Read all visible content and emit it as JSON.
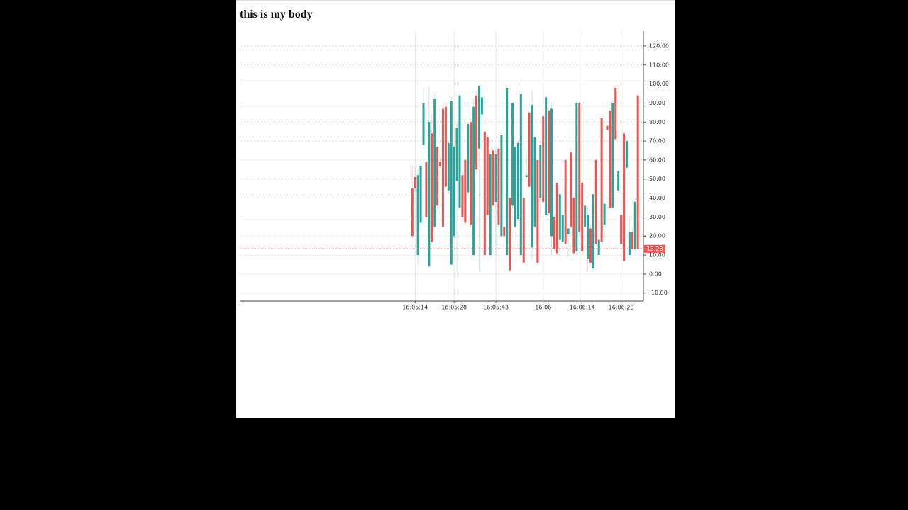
{
  "heading": "this is my body",
  "chart_data": {
    "type": "candlestick",
    "x": [
      57913,
      57914,
      57915,
      57916,
      57917,
      57918,
      57919,
      57920,
      57921,
      57922,
      57923,
      57924,
      57925,
      57926,
      57927,
      57928,
      57929,
      57930,
      57931,
      57932,
      57933,
      57934,
      57935,
      57936,
      57937,
      57938,
      57939,
      57940,
      57941,
      57942,
      57943,
      57944,
      57945,
      57946,
      57947,
      57948,
      57949,
      57950,
      57951,
      57952,
      57953,
      57954,
      57955,
      57956,
      57957,
      57958,
      57959,
      57960,
      57961,
      57962,
      57963,
      57964,
      57965,
      57966,
      57967,
      57968,
      57969,
      57970,
      57971,
      57972,
      57973,
      57974,
      57975,
      57976,
      57977,
      57978,
      57979,
      57980,
      57981,
      57982,
      57983,
      57984,
      57985,
      57986,
      57987,
      57988,
      57989,
      57990,
      57991,
      57992,
      57993,
      57994
    ],
    "open": [
      45,
      51,
      10,
      27,
      68,
      59,
      4,
      74,
      25,
      67,
      59,
      87,
      88,
      44,
      5,
      20,
      49,
      35,
      52,
      60,
      43,
      80,
      10,
      94,
      66,
      84,
      75,
      72,
      10,
      65,
      38,
      66,
      20,
      25,
      10,
      40,
      36,
      25,
      29,
      10,
      40,
      51,
      85,
      14,
      25,
      60,
      40,
      83,
      31,
      86,
      20,
      30,
      48,
      18,
      17,
      60,
      21,
      64,
      40,
      12,
      90,
      48,
      25,
      8,
      24,
      3,
      60,
      10,
      82,
      26,
      78,
      86,
      35,
      98,
      44,
      31,
      74,
      56,
      10,
      22,
      13,
      94
    ],
    "high": [
      57,
      56,
      55,
      58,
      98,
      60,
      99,
      84,
      95,
      68,
      62,
      88,
      89,
      70,
      93,
      68,
      80,
      95,
      54,
      61,
      79,
      82,
      92,
      96,
      100,
      94,
      76,
      73,
      64,
      66,
      67,
      67,
      74,
      26,
      99,
      41,
      91,
      68,
      70,
      100,
      41,
      64,
      86,
      97,
      73,
      61,
      70,
      84,
      94,
      87,
      90,
      31,
      49,
      43,
      45,
      61,
      25,
      65,
      41,
      91,
      91,
      49,
      37,
      35,
      26,
      43,
      61,
      30,
      83,
      38,
      79,
      87,
      92,
      99,
      55,
      32,
      75,
      72,
      30,
      24,
      40,
      95
    ],
    "low": [
      19,
      44,
      5,
      26,
      66,
      29,
      3,
      16,
      24,
      35,
      56,
      24,
      45,
      42,
      4,
      19,
      1,
      34,
      28,
      26,
      41,
      25,
      9,
      53,
      2,
      83,
      9,
      30,
      9,
      35,
      10,
      25,
      19,
      19,
      9,
      1,
      35,
      24,
      28,
      9,
      5,
      50,
      45,
      8,
      24,
      5,
      30,
      37,
      30,
      31,
      10,
      12,
      10,
      9,
      13,
      15,
      9,
      24,
      10,
      11,
      20,
      10,
      19,
      2,
      5,
      2,
      15,
      8,
      16,
      19,
      75,
      34,
      34,
      70,
      43,
      15,
      6,
      55,
      9,
      12,
      12,
      13
    ],
    "close": [
      20,
      45,
      52,
      57,
      90,
      30,
      80,
      17,
      92,
      36,
      57,
      25,
      46,
      69,
      91,
      67,
      77,
      94,
      30,
      27,
      79,
      26,
      88,
      55,
      99,
      93,
      10,
      31,
      63,
      36,
      63,
      26,
      73,
      20,
      98,
      2,
      90,
      67,
      69,
      95,
      6,
      52,
      46,
      89,
      72,
      6,
      68,
      38,
      93,
      32,
      87,
      13,
      11,
      42,
      31,
      16,
      24,
      25,
      11,
      90,
      22,
      12,
      36,
      31,
      6,
      42,
      16,
      18,
      17,
      37,
      76,
      35,
      90,
      71,
      54,
      16,
      7,
      70,
      22,
      13,
      38,
      13.28
    ],
    "up_color": "#26a69a",
    "down_color": "#ef5350",
    "xlim": [
      57851,
      57996
    ],
    "xticks": [
      {
        "value": 57914,
        "label": "16:05:14"
      },
      {
        "value": 57928,
        "label": "16:05:28"
      },
      {
        "value": 57943,
        "label": "16:05:43"
      },
      {
        "value": 57960,
        "label": "16:06"
      },
      {
        "value": 57974,
        "label": "16:06:14"
      },
      {
        "value": 57988,
        "label": "16:06:28"
      }
    ],
    "ylim": [
      -14.2,
      127.8
    ],
    "yticks": [
      {
        "value": -10,
        "label": "-10.00"
      },
      {
        "value": 0,
        "label": "0.00"
      },
      {
        "value": 10,
        "label": "10.00"
      },
      {
        "value": 20,
        "label": "20.00"
      },
      {
        "value": 30,
        "label": "30.00"
      },
      {
        "value": 40,
        "label": "40.00"
      },
      {
        "value": 50,
        "label": "50.00"
      },
      {
        "value": 60,
        "label": "60.00"
      },
      {
        "value": 70,
        "label": "70.00"
      },
      {
        "value": 80,
        "label": "80.00"
      },
      {
        "value": 90,
        "label": "90.00"
      },
      {
        "value": 100,
        "label": "100.00"
      },
      {
        "value": 110,
        "label": "110.00"
      },
      {
        "value": 120,
        "label": "120.00"
      }
    ],
    "grid": true
  }
}
